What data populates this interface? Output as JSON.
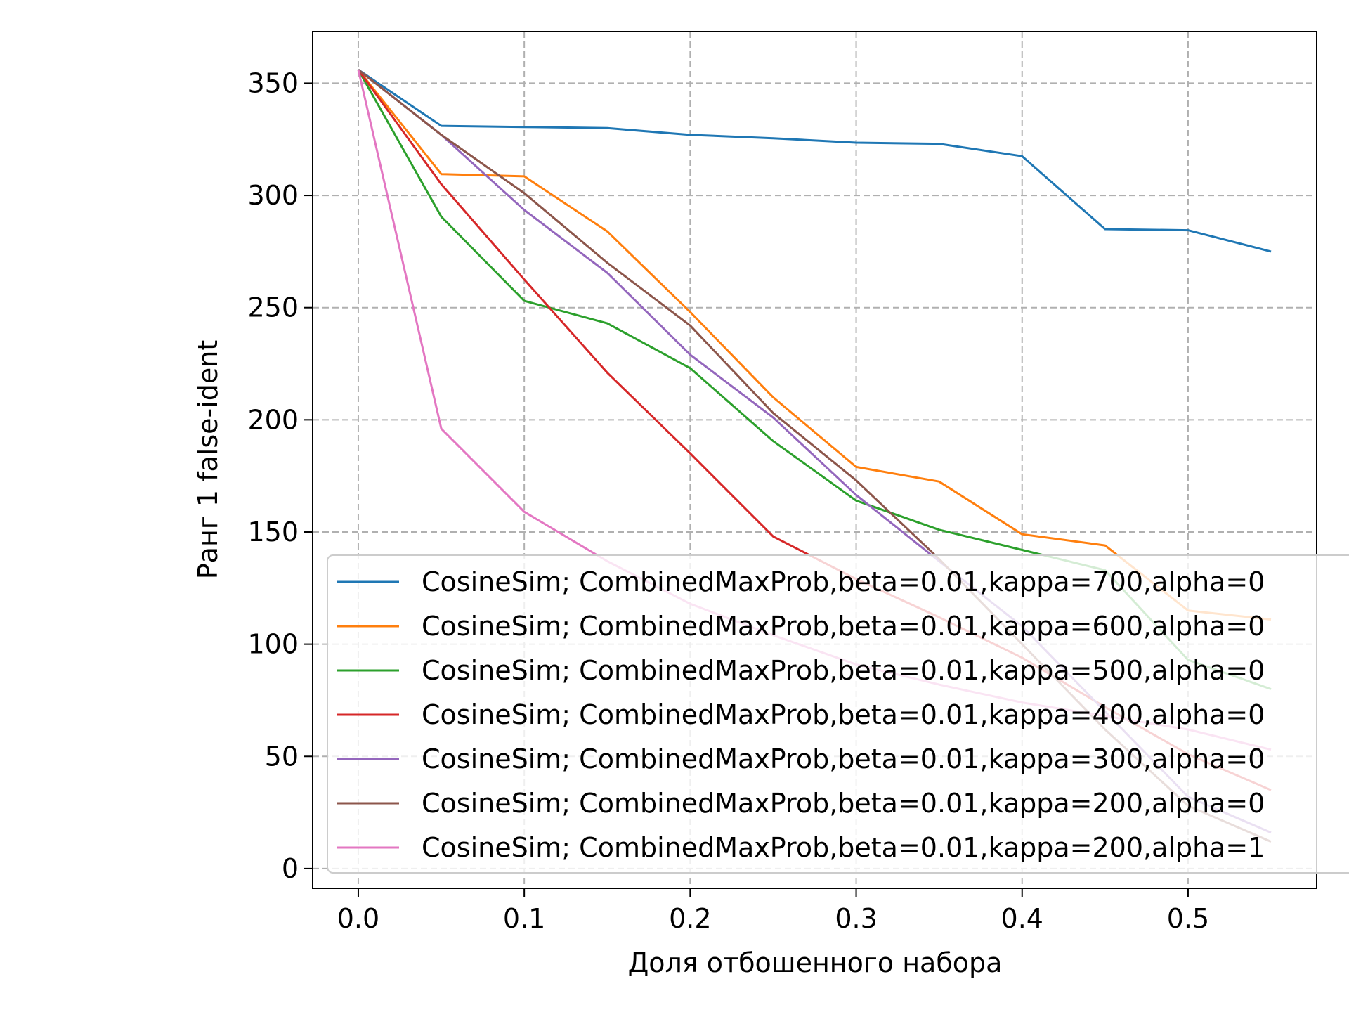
{
  "chart_data": {
    "type": "line",
    "xlabel": "Доля отбошенного набора",
    "ylabel": "Ранг 1 false-ident",
    "xlim": [
      -0.0275,
      0.5775
    ],
    "ylim": [
      -8.8,
      373
    ],
    "xticks": [
      0.0,
      0.1,
      0.2,
      0.3,
      0.4,
      0.5
    ],
    "xtick_labels": [
      "0.0",
      "0.1",
      "0.2",
      "0.3",
      "0.4",
      "0.5"
    ],
    "yticks": [
      0,
      50,
      100,
      150,
      200,
      250,
      300,
      350
    ],
    "ytick_labels": [
      "0",
      "50",
      "100",
      "150",
      "200",
      "250",
      "300",
      "350"
    ],
    "grid": true,
    "legend_position": "lower-right",
    "x": [
      0.0,
      0.05,
      0.1,
      0.15,
      0.2,
      0.25,
      0.3,
      0.35,
      0.4,
      0.45,
      0.5,
      0.55
    ],
    "series": [
      {
        "name": "CosineSim;  CombinedMaxProb,beta=0.01,kappa=700,alpha=0",
        "color": "#1f77b4",
        "values": [
          356,
          331,
          330.5,
          330,
          327,
          325.5,
          323.5,
          323,
          317.5,
          285,
          284.5,
          275
        ]
      },
      {
        "name": "CosineSim;  CombinedMaxProb,beta=0.01,kappa=600,alpha=0",
        "color": "#ff7f0e",
        "values": [
          356,
          309.5,
          308.5,
          284,
          248,
          210,
          179,
          172.5,
          149,
          144,
          115,
          111
        ]
      },
      {
        "name": "CosineSim;  CombinedMaxProb,beta=0.01,kappa=500,alpha=0",
        "color": "#2ca02c",
        "values": [
          356,
          290.5,
          253,
          243,
          223,
          190.5,
          164,
          151,
          142,
          133,
          93,
          80
        ]
      },
      {
        "name": "CosineSim;  CombinedMaxProb,beta=0.01,kappa=400,alpha=0",
        "color": "#d62728",
        "values": [
          356,
          305,
          262.5,
          221,
          185,
          148,
          129,
          112,
          94,
          72,
          51,
          35
        ]
      },
      {
        "name": "CosineSim;  CombinedMaxProb,beta=0.01,kappa=300,alpha=0",
        "color": "#9467bd",
        "values": [
          356,
          327,
          293.5,
          265.5,
          229,
          201,
          166.5,
          137,
          108,
          70,
          32,
          16
        ]
      },
      {
        "name": "CosineSim;  CombinedMaxProb,beta=0.01,kappa=200,alpha=0",
        "color": "#8c564b",
        "values": [
          356,
          327,
          301,
          270,
          242,
          203,
          173,
          138,
          100,
          62,
          28,
          12
        ]
      },
      {
        "name": "CosineSim;  CombinedMaxProb,beta=0.01,kappa=200,alpha=1",
        "color": "#e377c2",
        "values": [
          356,
          196,
          159,
          137,
          118,
          104,
          91,
          82,
          74,
          68,
          62,
          53
        ]
      }
    ]
  }
}
